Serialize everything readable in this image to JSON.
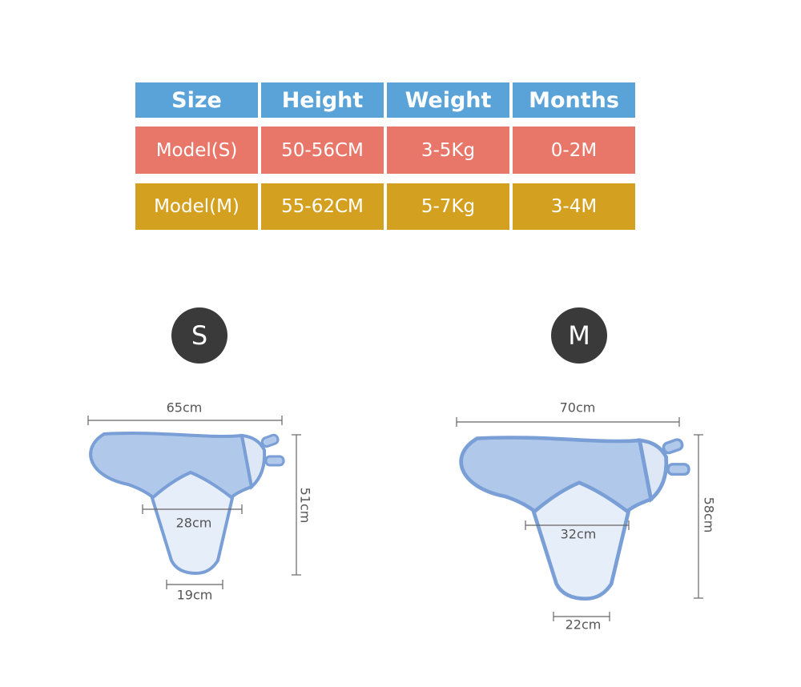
{
  "table": {
    "header": [
      "Size",
      "Height",
      "Weight",
      "Months"
    ],
    "rows": [
      [
        "Model(S)",
        "50-56CM",
        "3-5Kg",
        "0-2M"
      ],
      [
        "Model(M)",
        "55-62CM",
        "5-7Kg",
        "3-4M"
      ]
    ]
  },
  "diagrams": [
    {
      "label": "S",
      "width": "65cm",
      "height": "51cm",
      "middle": "28cm",
      "bottom": "19cm"
    },
    {
      "label": "M",
      "width": "70cm",
      "height": "58cm",
      "middle": "32cm",
      "bottom": "22cm"
    }
  ]
}
